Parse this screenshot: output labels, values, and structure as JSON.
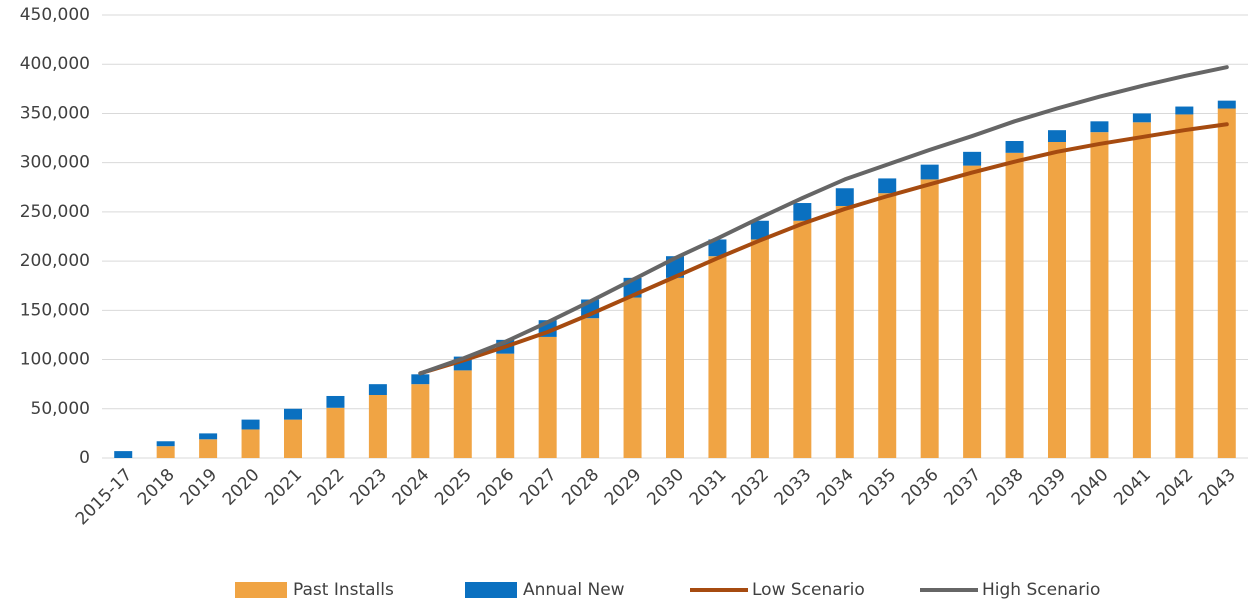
{
  "chart_data": {
    "type": "bar",
    "stacked": true,
    "grid": true,
    "categories": [
      "2015-17",
      "2018",
      "2019",
      "2020",
      "2021",
      "2022",
      "2023",
      "2024",
      "2025",
      "2026",
      "2027",
      "2028",
      "2029",
      "2030",
      "2031",
      "2032",
      "2033",
      "2034",
      "2035",
      "2036",
      "2037",
      "2038",
      "2039",
      "2040",
      "2041",
      "2042",
      "2043"
    ],
    "series": [
      {
        "name": "Past Installs",
        "type": "bar",
        "color": "#f0a444",
        "values": [
          0,
          12000,
          19000,
          29000,
          39000,
          51000,
          64000,
          75000,
          89000,
          106000,
          123000,
          142000,
          163000,
          183000,
          205000,
          222000,
          241000,
          256000,
          269000,
          283000,
          297000,
          310000,
          321000,
          331000,
          341000,
          349000,
          355000
        ]
      },
      {
        "name": "Annual New",
        "type": "bar",
        "color": "#0a70c0",
        "values": [
          7000,
          5000,
          6000,
          10000,
          11000,
          12000,
          11000,
          10000,
          14000,
          14000,
          17000,
          19000,
          20000,
          22000,
          17000,
          19000,
          18000,
          18000,
          15000,
          15000,
          14000,
          12000,
          12000,
          11000,
          9000,
          8000,
          8000
        ]
      },
      {
        "name": "Low Scenario",
        "type": "line",
        "color": "#a64b10",
        "values": [
          null,
          null,
          null,
          null,
          null,
          null,
          null,
          86000,
          99000,
          113000,
          128000,
          146000,
          165000,
          184000,
          203000,
          221000,
          238000,
          253000,
          266000,
          278000,
          290000,
          301000,
          311000,
          319000,
          326000,
          333000,
          339000
        ]
      },
      {
        "name": "High Scenario",
        "type": "line",
        "color": "#666666",
        "values": [
          null,
          null,
          null,
          null,
          null,
          null,
          null,
          86000,
          101000,
          118000,
          138000,
          159000,
          181000,
          203000,
          223000,
          244000,
          264000,
          283000,
          298000,
          313000,
          327000,
          342000,
          355000,
          367000,
          378000,
          388000,
          397000
        ]
      }
    ],
    "ylim": [
      0,
      450000
    ],
    "yticks": [
      0,
      {
        "value": 50000,
        "label": "50,000"
      },
      {
        "value": 100000,
        "label": "100,000"
      },
      {
        "value": 150000,
        "label": "150,000"
      },
      {
        "value": 200000,
        "label": "200,000"
      },
      {
        "value": 250000,
        "label": "250,000"
      },
      {
        "value": 300000,
        "label": "300,000"
      },
      {
        "value": 350000,
        "label": "350,000"
      },
      {
        "value": 400000,
        "label": "400,000"
      },
      {
        "value": 450000,
        "label": "450,000"
      }
    ]
  }
}
